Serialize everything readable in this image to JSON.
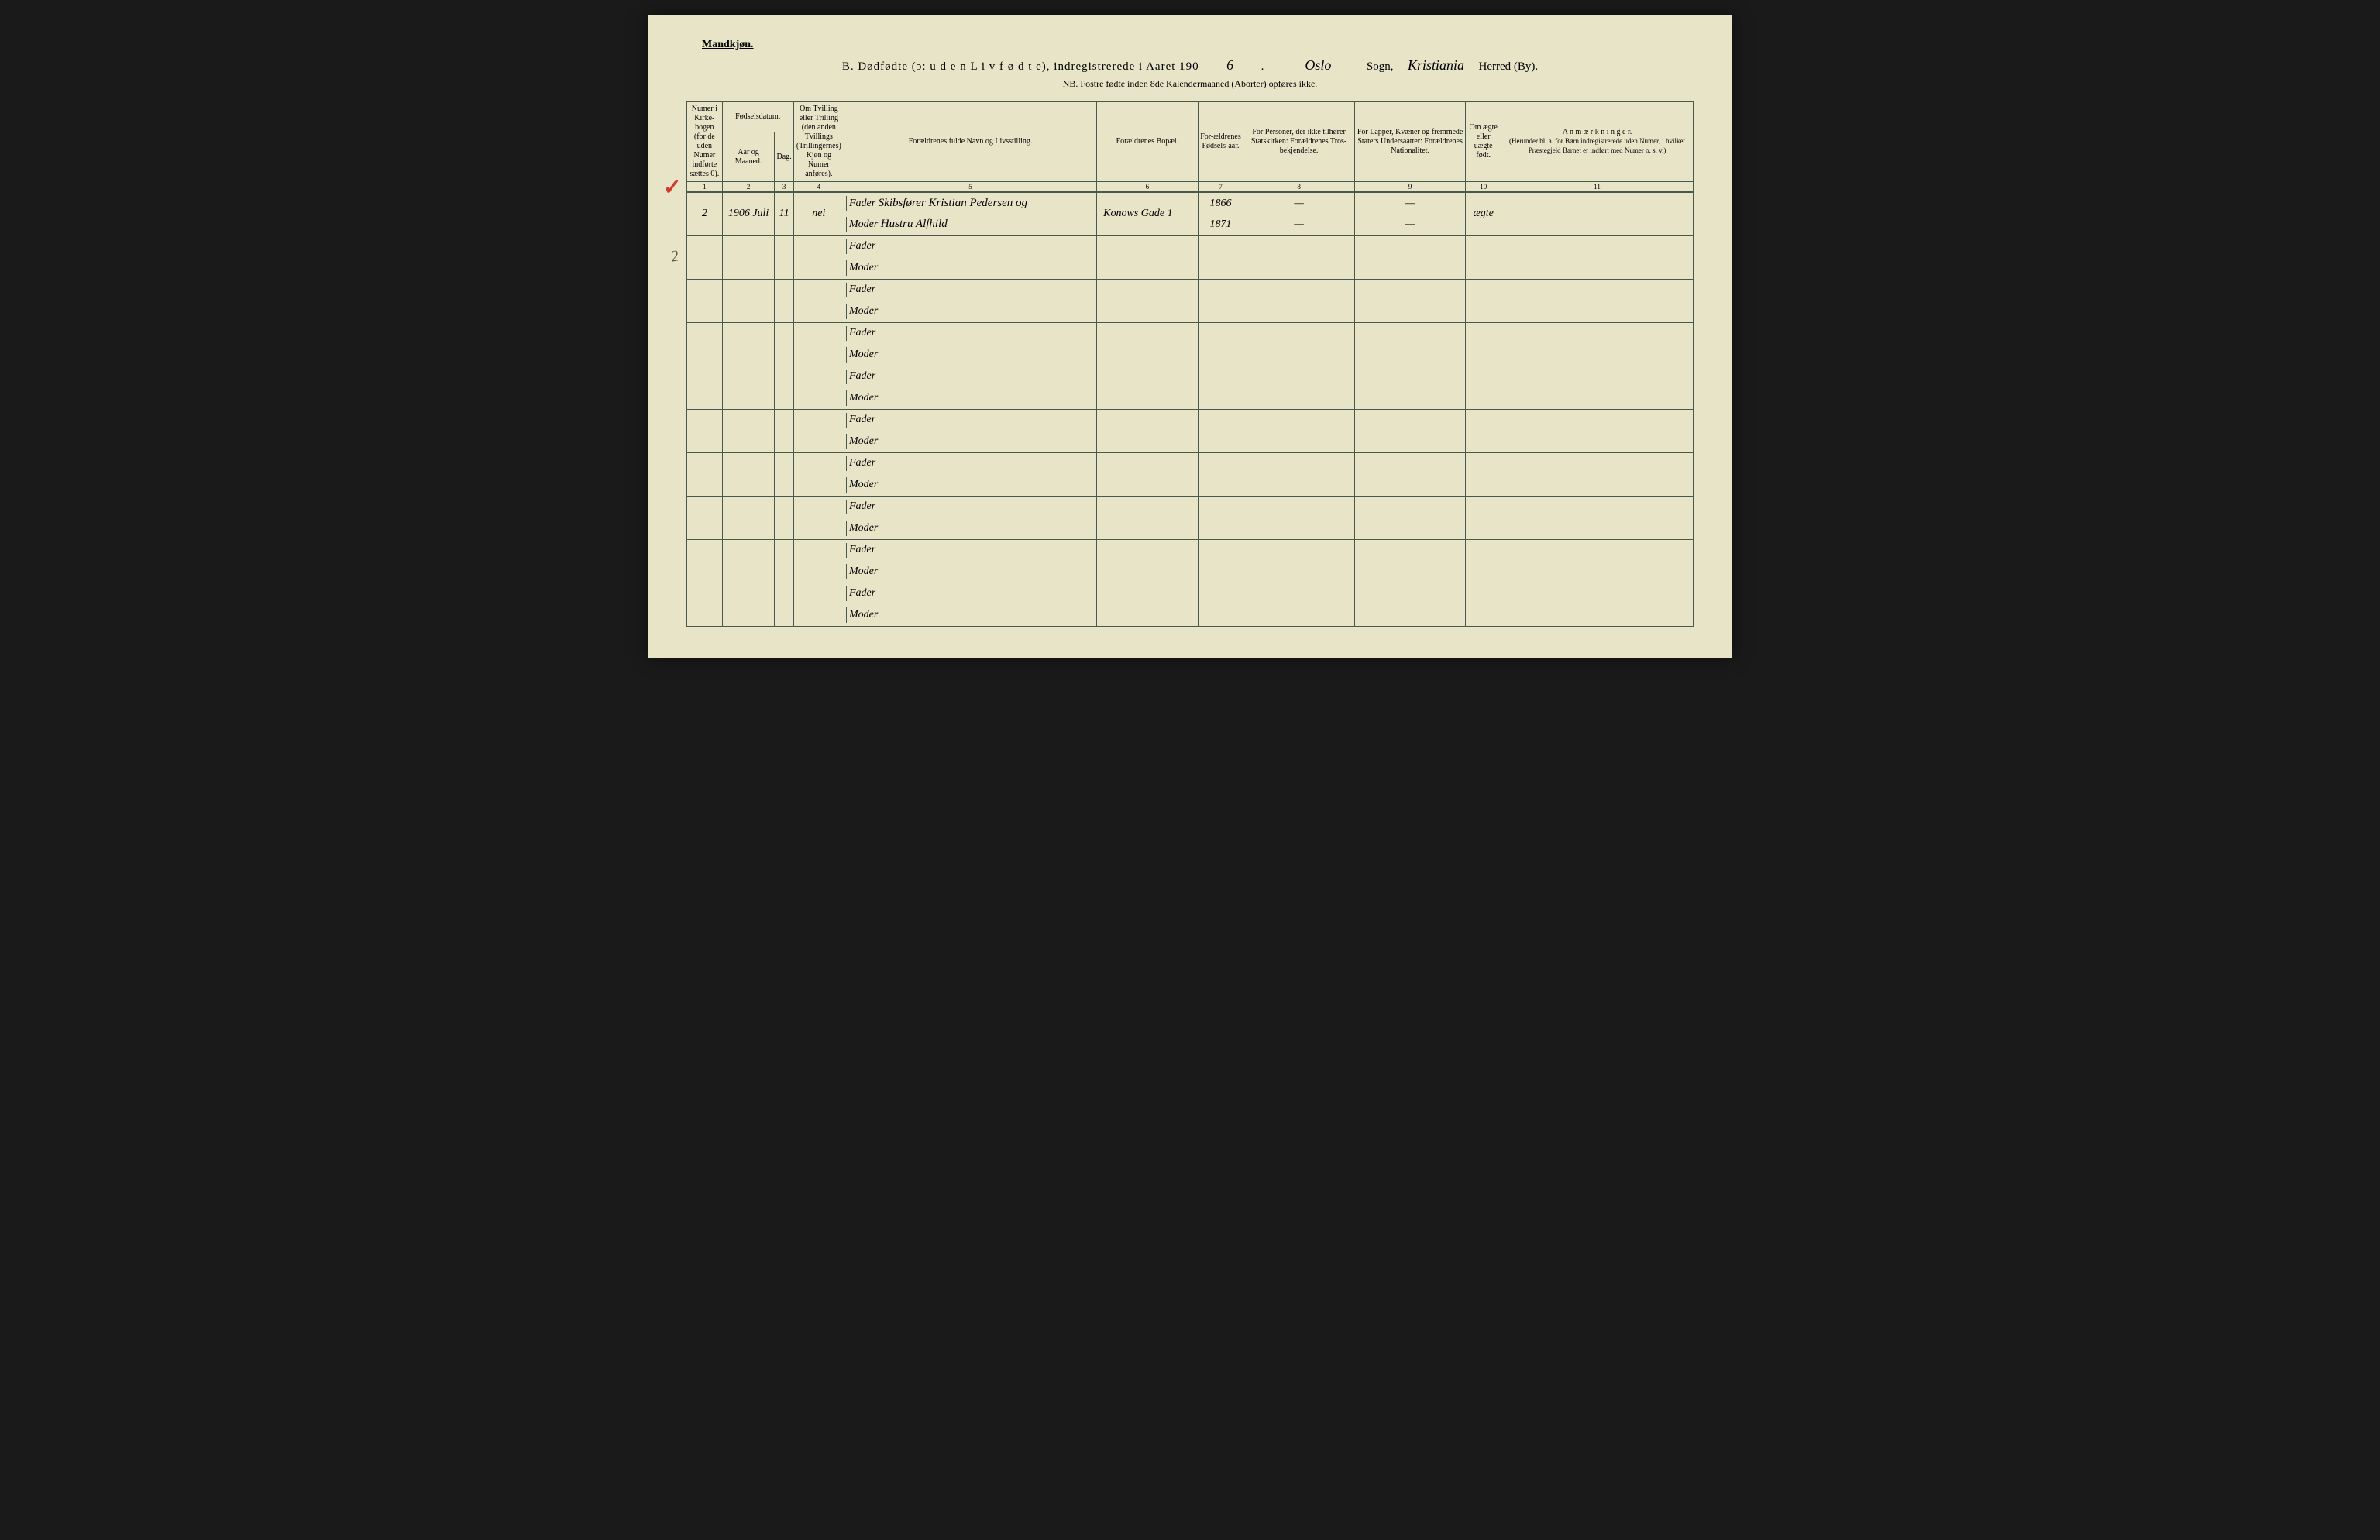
{
  "header": {
    "gender": "Mandkjøn.",
    "title_prefix": "B.  Dødfødte (ɔ:  u d e n   L i v   f ø d t e),  indregistrerede  i  Aaret  190",
    "year_suffix": "6",
    "sogn_value": "Oslo",
    "sogn_label": "Sogn,",
    "herred_value": "Kristiania",
    "herred_label": "Herred (By).",
    "nb": "NB.  Fostre fødte inden 8de Kalendermaaned (Aborter) opføres ikke."
  },
  "columns": {
    "c1": "Numer i Kirke-bogen (for de uden Numer indførte sættes 0).",
    "c2_main": "Fødselsdatum.",
    "c2a": "Aar og Maaned.",
    "c2b": "Dag.",
    "c4": "Om Tvilling eller Trilling (den anden Tvillings (Trillingernes) Kjøn og Numer anføres).",
    "c5": "Forældrenes fulde Navn og Livsstilling.",
    "c6": "Forældrenes Bopæl.",
    "c7": "For-ældrenes Fødsels-aar.",
    "c8": "For Personer, der ikke tilhører Statskirken: Forældrenes Tros-bekjendelse.",
    "c9": "For Lapper, Kvæner og fremmede Staters Undersaatter: Forældrenes Nationalitet.",
    "c10": "Om ægte eller uægte født.",
    "c11": "A n m æ r k n i n g e r.",
    "c11_sub": "(Herunder bl. a. for Børn indregistrerede uden Numer, i hvilket Præstegjeld Barnet er indført med Numer o. s. v.)"
  },
  "colnums": [
    "1",
    "2",
    "3",
    "4",
    "5",
    "6",
    "7",
    "8",
    "9",
    "10",
    "11"
  ],
  "labels": {
    "fader": "Fader",
    "moder": "Moder"
  },
  "row1": {
    "num": "2",
    "year_month": "1906 Juli",
    "day": "11",
    "twin": "nei",
    "fader_name": "Skibsfører Kristian Pedersen og",
    "moder_name": "Hustru Alfhild",
    "bopael": "Konows Gade 1",
    "fader_year": "1866",
    "moder_year": "1871",
    "c8_f": "—",
    "c8_m": "—",
    "c9_f": "—",
    "c9_m": "—",
    "legit": "ægte"
  },
  "annotations": {
    "checkmark": "✓",
    "slash2": "2"
  },
  "colors": {
    "paper": "#e8e4c8",
    "ink": "#2a3a2a",
    "rule": "#4a5a4a",
    "red": "#d43a2a",
    "background": "#1a1a1a"
  },
  "layout": {
    "empty_rows": 9
  }
}
